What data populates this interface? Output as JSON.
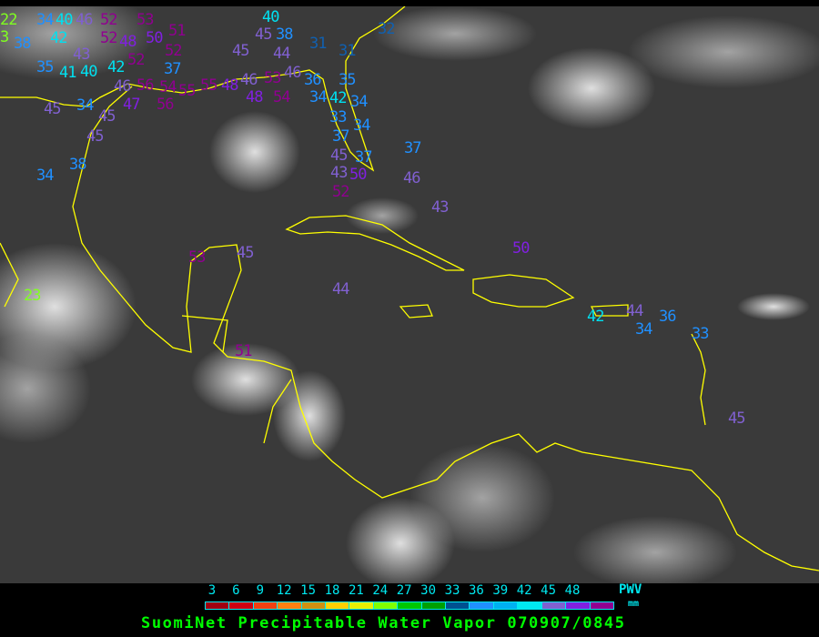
{
  "title": "SuomiNet Precipitable Water Vapor 070907/0845",
  "legend": {
    "unit_top": "PWV",
    "unit_bottom": "mm",
    "ticks": [
      "3",
      "6",
      "9",
      "12",
      "15",
      "18",
      "21",
      "24",
      "27",
      "30",
      "33",
      "36",
      "39",
      "42",
      "45",
      "48"
    ],
    "colors": [
      "#a00010",
      "#d00010",
      "#f04010",
      "#ff8010",
      "#d09010",
      "#ffd000",
      "#e8f000",
      "#80ff00",
      "#00c800",
      "#00a000",
      "#005090",
      "#2090ff",
      "#00b0f0",
      "#00e8f0",
      "#8060d0",
      "#8020e0",
      "#900090"
    ]
  },
  "map": {
    "coastline_color": "#ffff00",
    "station_values": [
      "22",
      "3",
      "38",
      "34",
      "40",
      "42",
      "46",
      "43",
      "35",
      "41",
      "40",
      "42",
      "52",
      "52",
      "53",
      "50",
      "51",
      "48",
      "52",
      "52",
      "37",
      "54",
      "46",
      "47",
      "56",
      "56",
      "55",
      "55",
      "48",
      "46",
      "48",
      "53",
      "54",
      "45",
      "45",
      "40",
      "38",
      "44",
      "46",
      "31",
      "31",
      "32",
      "36",
      "34",
      "42",
      "35",
      "34",
      "33",
      "37",
      "34",
      "45",
      "34",
      "45",
      "45",
      "34",
      "38",
      "45",
      "43",
      "37",
      "52",
      "50",
      "37",
      "46",
      "43",
      "50",
      "44",
      "53",
      "45",
      "23",
      "42",
      "44",
      "34",
      "36",
      "33",
      "45",
      "51"
    ]
  }
}
